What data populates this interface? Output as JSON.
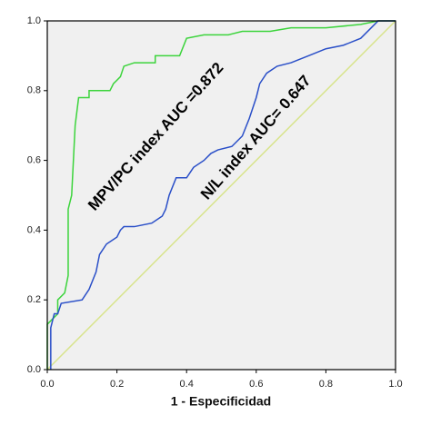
{
  "chart_data": {
    "type": "line",
    "xlabel": "1 - Especificidad",
    "annotations": [
      "MPV/PC index AUC =0.872",
      "N/L index AUC= 0.647"
    ],
    "xlim": [
      0,
      1
    ],
    "ylim": [
      0,
      1
    ],
    "xticks": [
      {
        "value": 0,
        "label": "0.0"
      },
      0.2,
      0.4,
      0.6,
      0.8,
      {
        "value": 1,
        "label": "1.0"
      }
    ],
    "yticks": [
      {
        "value": 0,
        "label": "0.0"
      },
      0.2,
      0.4,
      0.6,
      0.8,
      {
        "value": 1,
        "label": "1.0"
      }
    ],
    "grid": false,
    "series": [
      {
        "color": "#d8e48c",
        "x": [
          0,
          1
        ],
        "values": [
          0,
          1
        ]
      },
      {
        "color": "#3cd43c",
        "x": [
          0,
          0,
          0.03,
          0.03,
          0.05,
          0.06,
          0.06,
          0.07,
          0.08,
          0.09,
          0.12,
          0.12,
          0.18,
          0.19,
          0.21,
          0.22,
          0.25,
          0.31,
          0.31,
          0.38,
          0.4,
          0.45,
          0.52,
          0.56,
          0.64,
          0.7,
          0.8,
          0.9,
          0.95,
          1
        ],
        "values": [
          0,
          0.13,
          0.16,
          0.2,
          0.22,
          0.27,
          0.46,
          0.5,
          0.7,
          0.78,
          0.78,
          0.8,
          0.8,
          0.82,
          0.84,
          0.87,
          0.88,
          0.88,
          0.9,
          0.9,
          0.95,
          0.96,
          0.96,
          0.97,
          0.97,
          0.98,
          0.98,
          0.99,
          1,
          1
        ]
      },
      {
        "color": "#2a4fc8",
        "x": [
          0.01,
          0.01,
          0.02,
          0.03,
          0.04,
          0.1,
          0.12,
          0.14,
          0.15,
          0.17,
          0.2,
          0.21,
          0.22,
          0.25,
          0.3,
          0.33,
          0.34,
          0.35,
          0.37,
          0.4,
          0.42,
          0.45,
          0.47,
          0.49,
          0.53,
          0.56,
          0.58,
          0.6,
          0.61,
          0.63,
          0.66,
          0.7,
          0.75,
          0.8,
          0.85,
          0.9,
          0.93,
          0.95,
          1
        ],
        "values": [
          0,
          0.12,
          0.16,
          0.16,
          0.19,
          0.2,
          0.23,
          0.28,
          0.33,
          0.36,
          0.38,
          0.4,
          0.41,
          0.41,
          0.42,
          0.44,
          0.46,
          0.5,
          0.55,
          0.55,
          0.58,
          0.6,
          0.62,
          0.63,
          0.64,
          0.67,
          0.72,
          0.78,
          0.82,
          0.85,
          0.87,
          0.88,
          0.9,
          0.92,
          0.93,
          0.95,
          0.98,
          1,
          1
        ]
      }
    ]
  }
}
